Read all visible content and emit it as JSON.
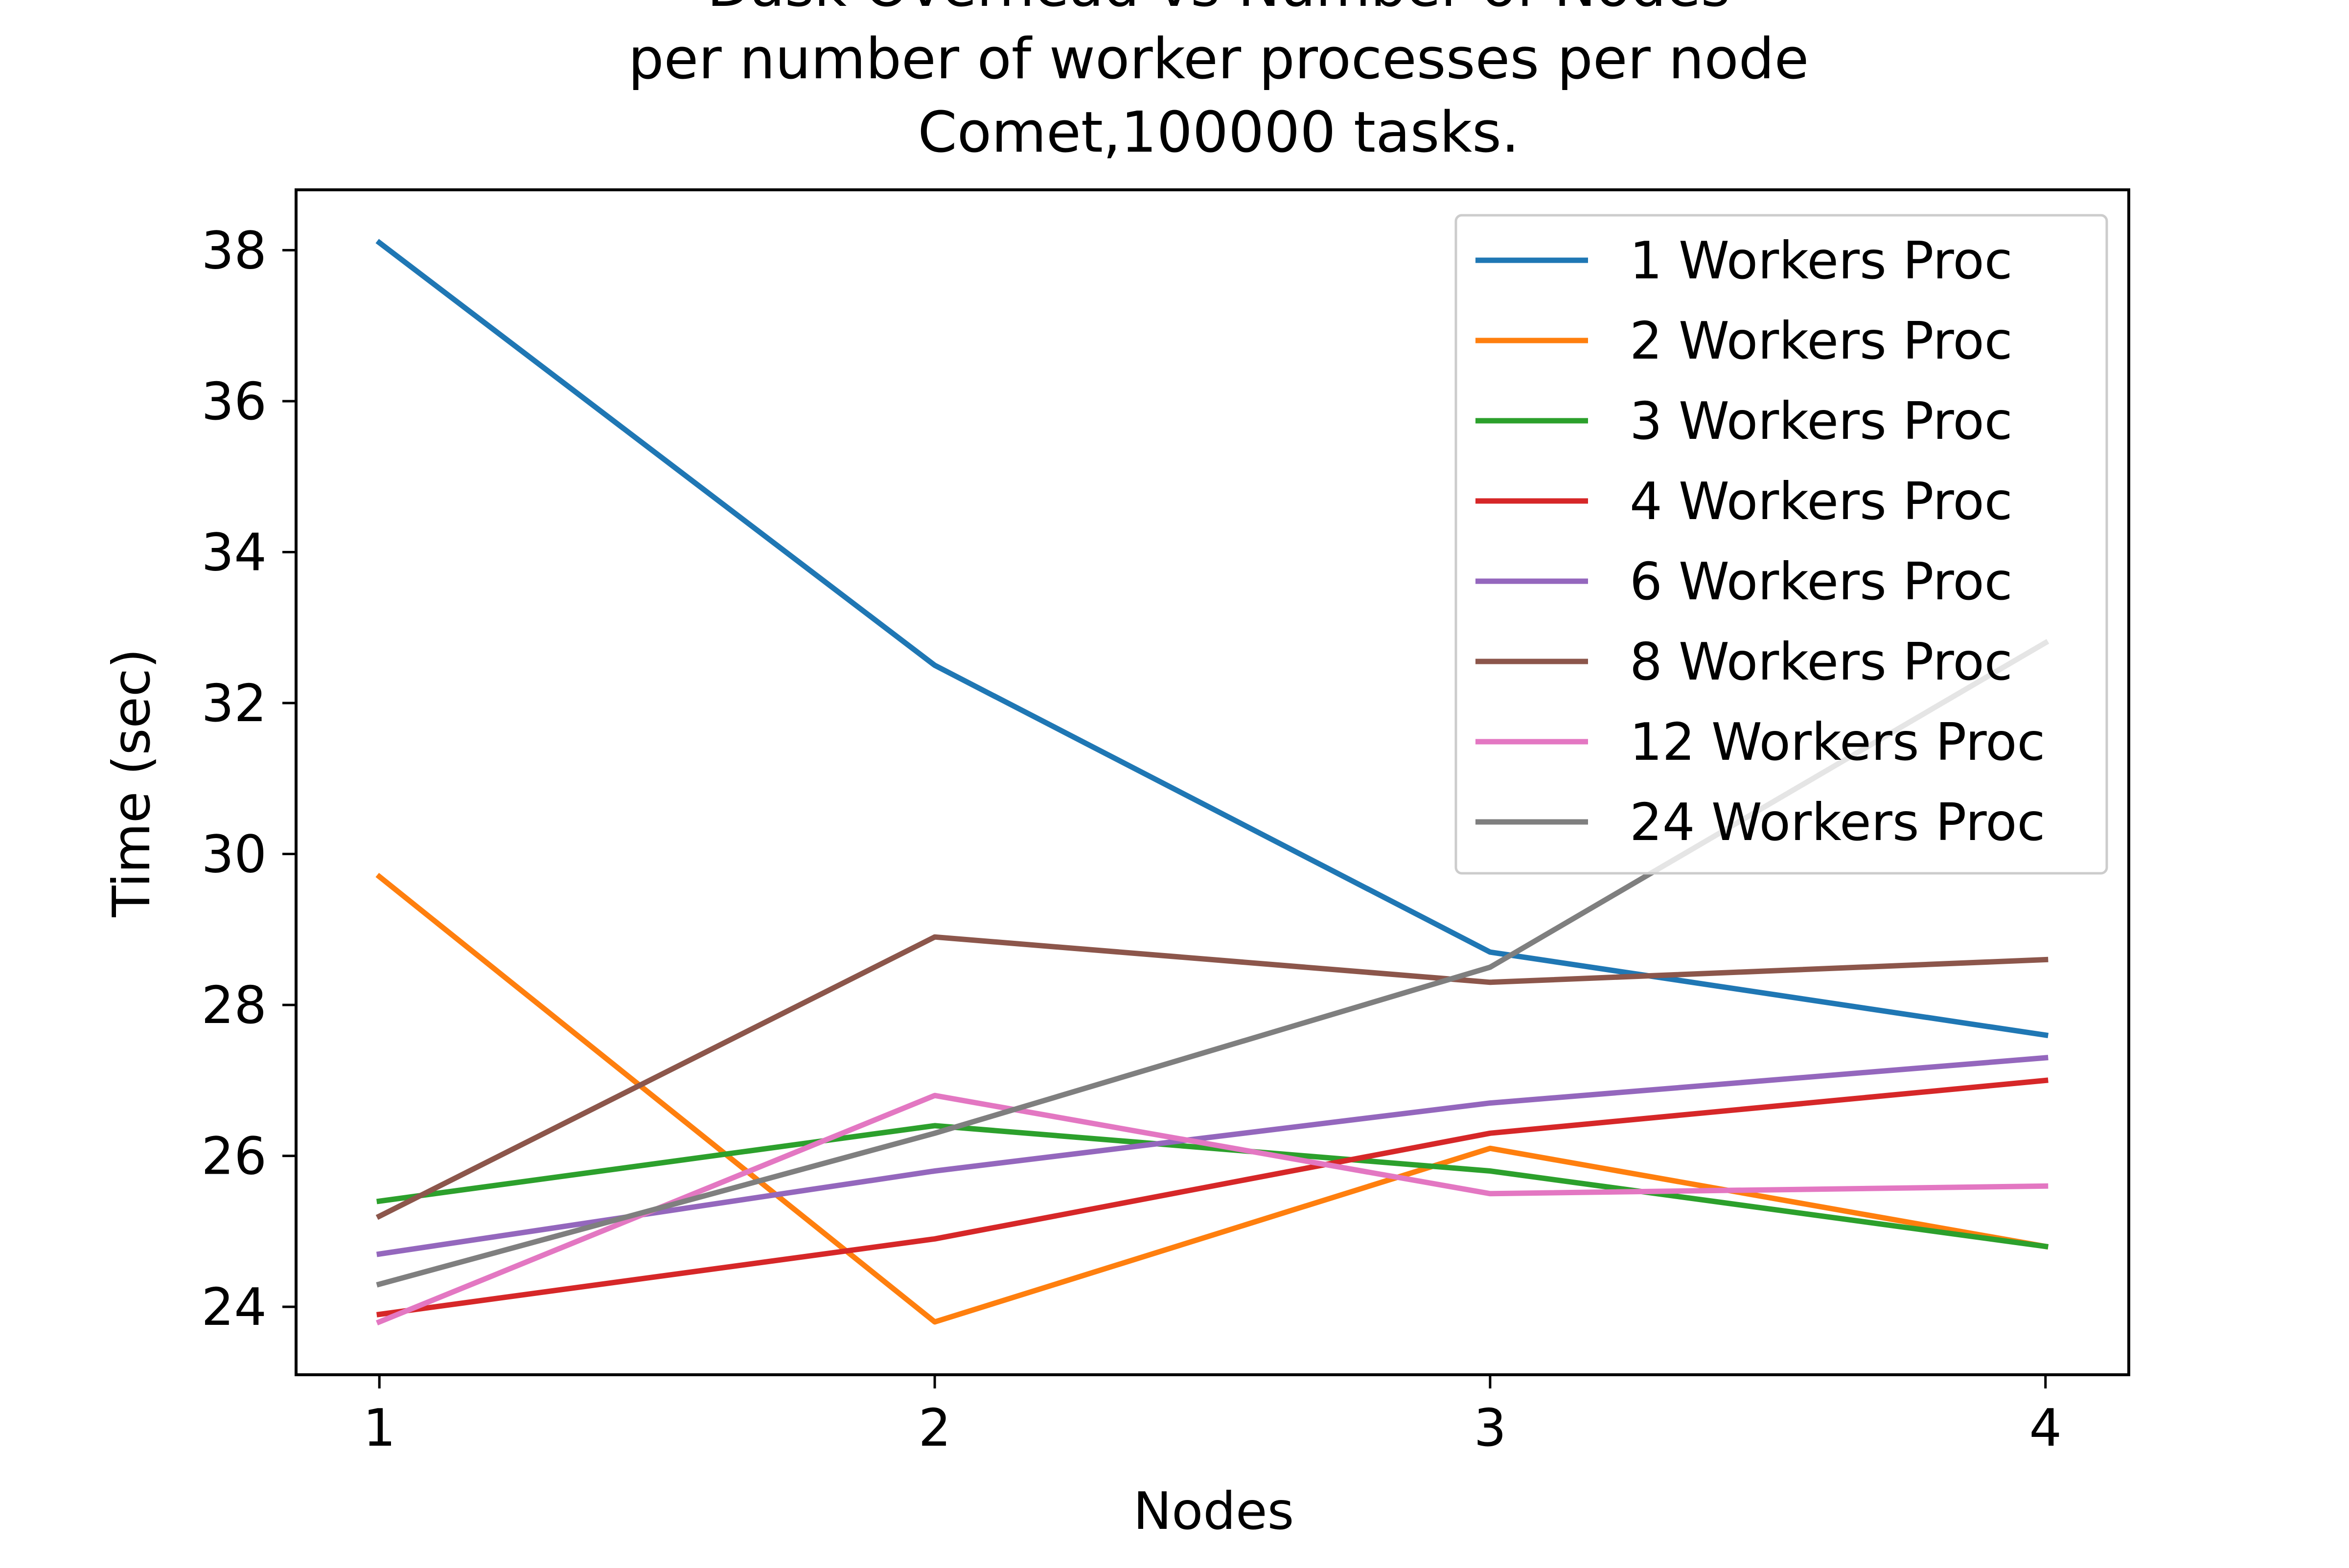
{
  "chart_data": {
    "type": "line",
    "title_lines": [
      "Dask Overhead vs Number of Nodes",
      "per number of worker processes per node",
      "Comet,100000 tasks."
    ],
    "xlabel": "Nodes",
    "ylabel": "Time (sec)",
    "x": [
      1,
      2,
      3,
      4
    ],
    "x_tick_labels": [
      "1",
      "2",
      "3",
      "4"
    ],
    "y_ticks": [
      24,
      26,
      28,
      30,
      32,
      34,
      36,
      38
    ],
    "y_tick_labels": [
      "24",
      "26",
      "28",
      "30",
      "32",
      "34",
      "36",
      "38"
    ],
    "xlim": [
      0.85,
      4.15
    ],
    "ylim": [
      23.1,
      38.8
    ],
    "grid": false,
    "legend_position": "top-right",
    "series": [
      {
        "name": "1 Workers Proc",
        "color": "#1f77b4",
        "values": [
          38.1,
          32.5,
          28.7,
          27.6
        ]
      },
      {
        "name": "2 Workers Proc",
        "color": "#ff7f0e",
        "values": [
          29.7,
          23.8,
          26.1,
          24.8
        ]
      },
      {
        "name": "3 Workers Proc",
        "color": "#2ca02c",
        "values": [
          25.4,
          26.4,
          25.8,
          24.8
        ]
      },
      {
        "name": "4 Workers Proc",
        "color": "#d62728",
        "values": [
          23.9,
          24.9,
          26.3,
          27.0
        ]
      },
      {
        "name": "6 Workers Proc",
        "color": "#9467bd",
        "values": [
          24.7,
          25.8,
          26.7,
          27.3
        ]
      },
      {
        "name": "8 Workers Proc",
        "color": "#8c564b",
        "values": [
          25.2,
          28.9,
          28.3,
          28.6
        ]
      },
      {
        "name": "12 Workers Proc",
        "color": "#e377c2",
        "values": [
          23.8,
          26.8,
          25.5,
          25.6
        ]
      },
      {
        "name": "24 Workers Proc",
        "color": "#7f7f7f",
        "values": [
          24.3,
          26.3,
          28.5,
          32.8
        ]
      }
    ]
  }
}
